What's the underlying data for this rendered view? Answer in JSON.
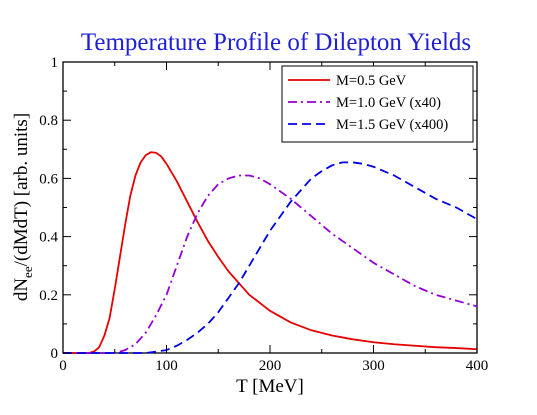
{
  "chart_data": {
    "type": "line",
    "title": "Temperature Profile of Dilepton Yields",
    "xlabel": "T [MeV]",
    "ylabel": "dN_ee/(dMdT) [arb. units]",
    "ylabel_parts": {
      "main": "dN",
      "sub": "ee",
      "rest": "/(dMdT) [arb. units]"
    },
    "xlim": [
      0,
      400
    ],
    "ylim": [
      0,
      1
    ],
    "xticks": [
      0,
      100,
      200,
      300,
      400
    ],
    "yticks": [
      0,
      0.2,
      0.4,
      0.6,
      0.8,
      1
    ],
    "ytick_labels": [
      "0",
      "0.2",
      "0.4",
      "0.6",
      "0.8",
      "1"
    ],
    "grid": false,
    "legend_position": "top-right",
    "series": [
      {
        "name": "M=0.5 GeV",
        "color": "#e60000",
        "dash": "solid",
        "x": [
          0,
          25,
          30,
          35,
          40,
          45,
          50,
          55,
          60,
          65,
          70,
          75,
          80,
          85,
          90,
          95,
          100,
          110,
          120,
          130,
          140,
          150,
          160,
          180,
          200,
          220,
          240,
          260,
          280,
          300,
          320,
          340,
          360,
          380,
          400
        ],
        "y": [
          0,
          0,
          0.005,
          0.02,
          0.06,
          0.12,
          0.22,
          0.33,
          0.44,
          0.54,
          0.61,
          0.655,
          0.68,
          0.69,
          0.688,
          0.675,
          0.65,
          0.59,
          0.52,
          0.45,
          0.385,
          0.33,
          0.28,
          0.2,
          0.145,
          0.105,
          0.078,
          0.06,
          0.047,
          0.037,
          0.03,
          0.025,
          0.02,
          0.017,
          0.013
        ]
      },
      {
        "name": "M=1.0 GeV (x40)",
        "color": "#9400d3",
        "dash": "dashdot",
        "x": [
          0,
          50,
          60,
          70,
          80,
          90,
          100,
          110,
          120,
          130,
          140,
          150,
          160,
          170,
          180,
          190,
          200,
          220,
          240,
          260,
          280,
          300,
          320,
          340,
          360,
          380,
          400
        ],
        "y": [
          0,
          0,
          0.01,
          0.03,
          0.07,
          0.13,
          0.2,
          0.3,
          0.4,
          0.48,
          0.54,
          0.58,
          0.6,
          0.61,
          0.61,
          0.6,
          0.58,
          0.53,
          0.47,
          0.41,
          0.36,
          0.31,
          0.27,
          0.23,
          0.2,
          0.18,
          0.16
        ]
      },
      {
        "name": "M=1.5 GeV (x400)",
        "color": "#0000e6",
        "dash": "dashed",
        "x": [
          0,
          80,
          90,
          100,
          110,
          120,
          130,
          140,
          150,
          160,
          170,
          180,
          190,
          200,
          210,
          220,
          230,
          240,
          250,
          260,
          270,
          280,
          290,
          300,
          320,
          340,
          360,
          380,
          400
        ],
        "y": [
          0,
          0,
          0.005,
          0.01,
          0.025,
          0.045,
          0.07,
          0.1,
          0.14,
          0.19,
          0.24,
          0.3,
          0.36,
          0.42,
          0.47,
          0.52,
          0.56,
          0.6,
          0.625,
          0.645,
          0.655,
          0.655,
          0.65,
          0.64,
          0.61,
          0.57,
          0.53,
          0.5,
          0.46
        ]
      }
    ]
  }
}
